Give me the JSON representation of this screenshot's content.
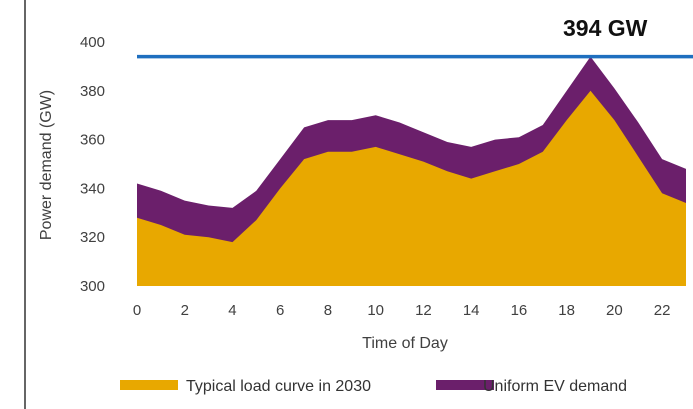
{
  "chart_data": {
    "type": "area",
    "title": "",
    "xlabel": "Time of Day",
    "ylabel": "Power demand (GW)",
    "ylim": [
      300,
      400
    ],
    "yticks": [
      300,
      320,
      340,
      360,
      380,
      400
    ],
    "xticks": [
      0,
      2,
      4,
      6,
      8,
      10,
      12,
      14,
      16,
      18,
      20,
      22
    ],
    "x": [
      0,
      1,
      2,
      3,
      4,
      5,
      6,
      7,
      8,
      9,
      10,
      11,
      12,
      13,
      14,
      15,
      16,
      17,
      18,
      19,
      20,
      21,
      22,
      23
    ],
    "series": [
      {
        "name": "Typical load curve in 2030",
        "color": "#e8a800",
        "values": [
          328,
          325,
          321,
          320,
          318,
          327,
          340,
          352,
          355,
          355,
          357,
          354,
          351,
          347,
          344,
          347,
          350,
          355,
          368,
          380,
          368,
          353,
          338,
          334
        ]
      },
      {
        "name": "Uniform EV demand",
        "color": "#6b1f6b",
        "values": [
          342,
          339,
          335,
          333,
          332,
          339,
          352,
          365,
          368,
          368,
          370,
          367,
          363,
          359,
          357,
          360,
          361,
          366,
          380,
          394,
          381,
          367,
          352,
          348
        ]
      }
    ],
    "reference_line": {
      "value": 394,
      "color": "#1f6fbf",
      "label": "394 GW"
    },
    "legend_position": "bottom",
    "grid": false
  }
}
